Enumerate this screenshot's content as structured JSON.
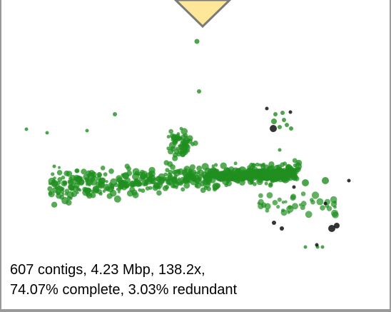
{
  "summary": {
    "line1": "607 contigs, 4.23 Mbp, 138.2x,",
    "line2": "74.07% complete, 3.03% redundant"
  },
  "colors": {
    "contig_fill": "#1f8f1f",
    "outlier_fill": "#111111",
    "pointer_fill": "#ffe79a",
    "pointer_stroke": "#7a7a7a",
    "frame": "#9a9a9a"
  },
  "icons": {
    "pointer": "triangle-down-icon"
  }
}
